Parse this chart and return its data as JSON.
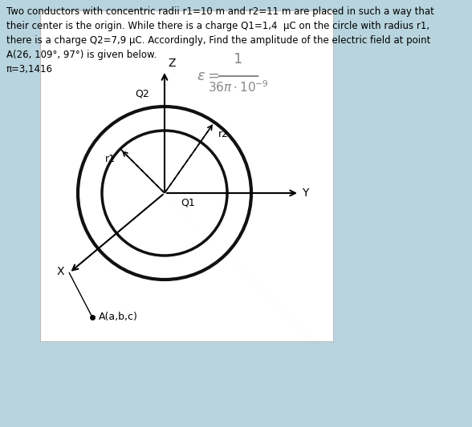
{
  "bg_color": "#b8d4de",
  "panel_bg": "#ffffff",
  "text_color": "#000000",
  "title_lines": [
    "Two conductors with concentric radii r1=10 m and r2=11 m are placed in such a way that",
    "their center is the origin. While there is a charge Q1=1,4  μC on the circle with radius r1,",
    "there is a charge Q2=7,9 μC. Accordingly, Find the amplitude of the electric field at point",
    "A(26, 109°, 97°) is given below.",
    "π=3,1416"
  ],
  "formula_color": "#888888",
  "circle_color": "#111111",
  "circle_lw_outer": 3.0,
  "circle_lw_inner": 2.5,
  "axis_lw": 1.5,
  "dash_lw": 1.2
}
